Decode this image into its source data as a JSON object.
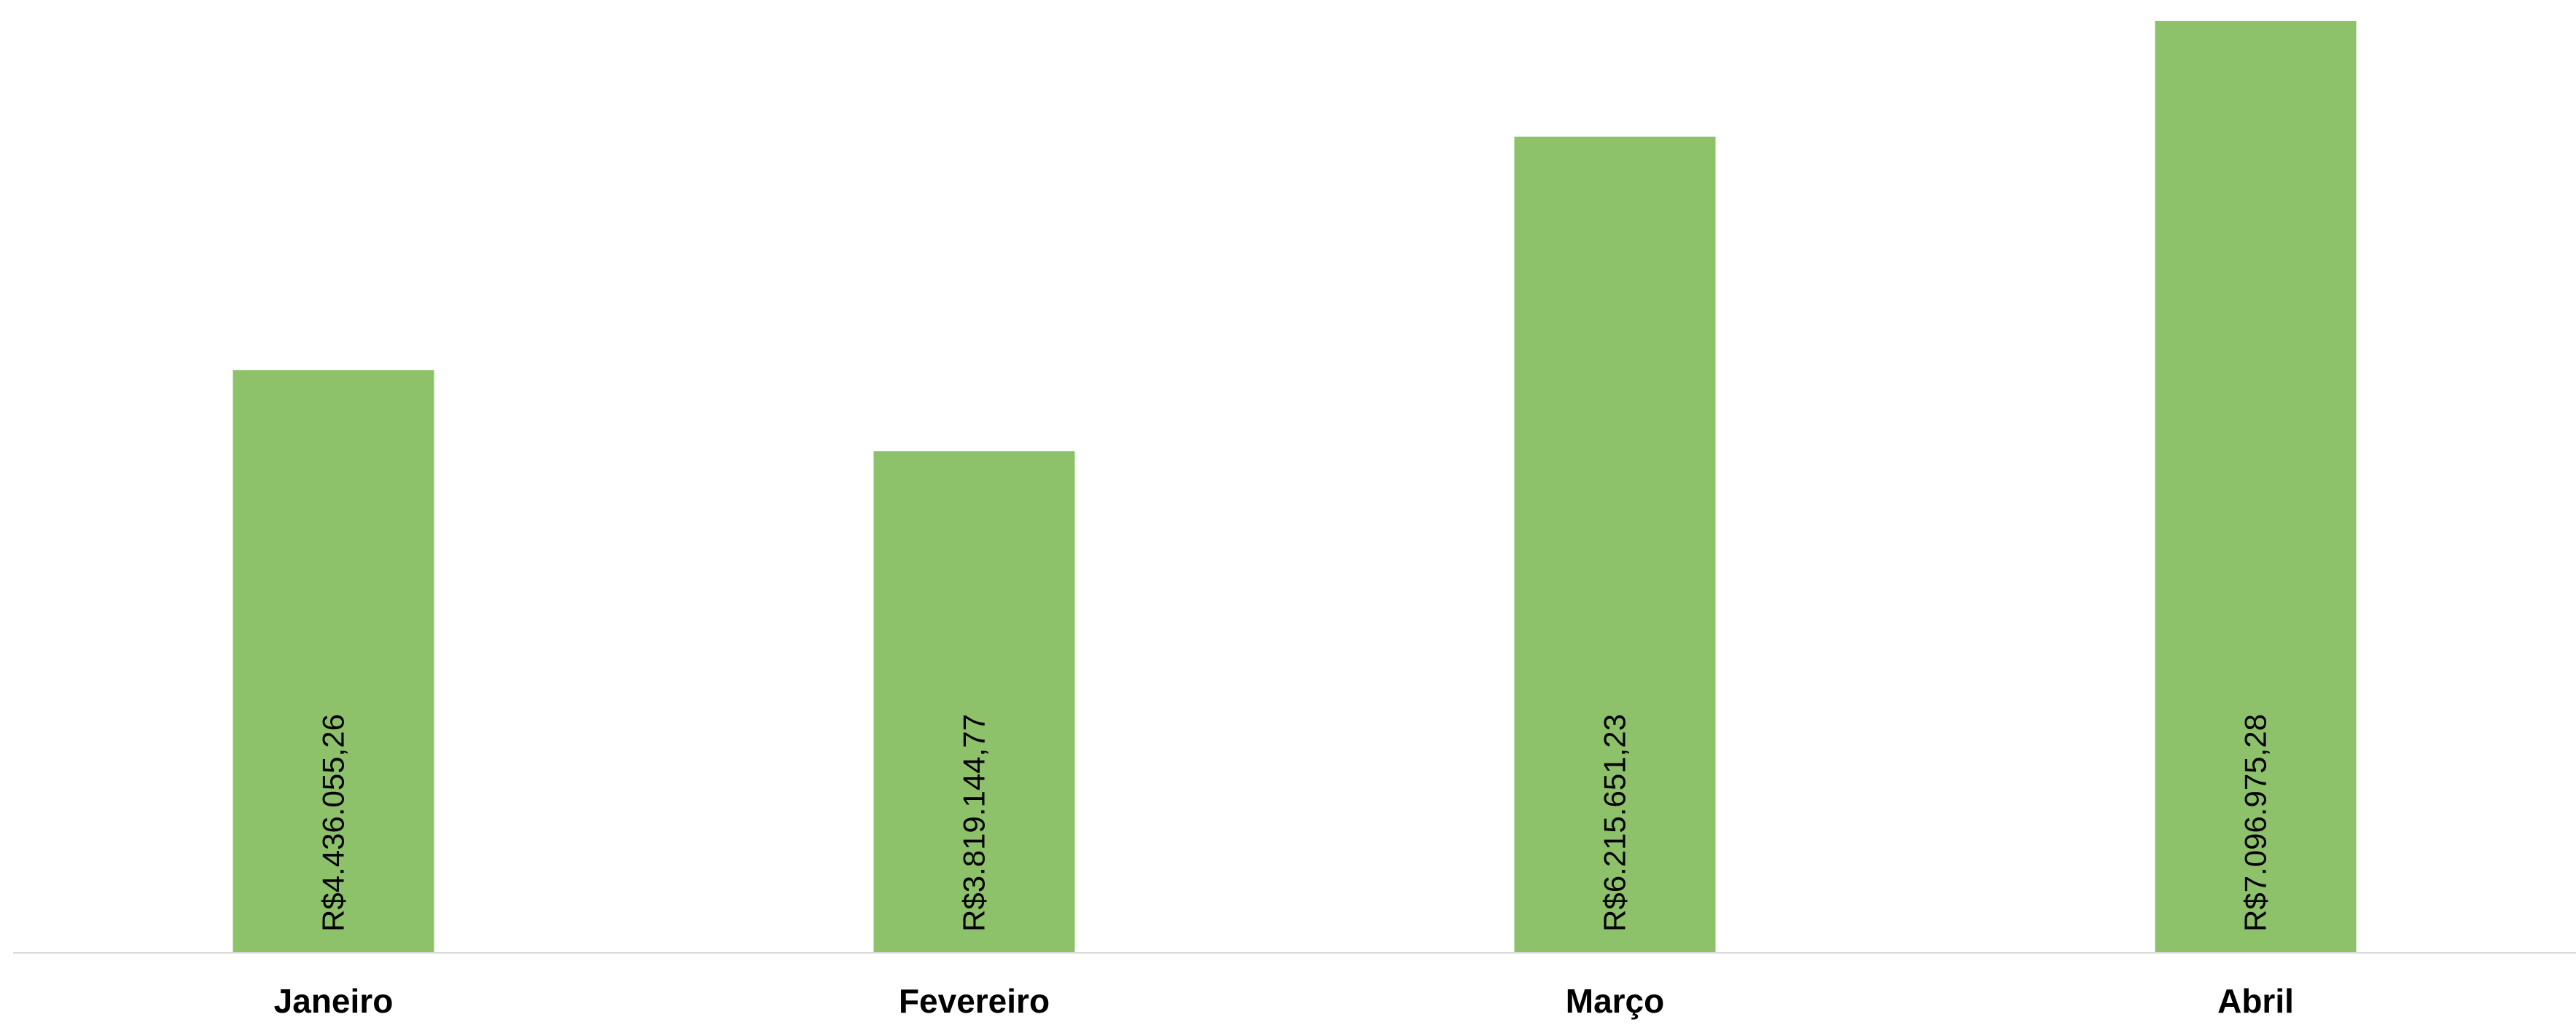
{
  "chart_data": {
    "type": "bar",
    "categories": [
      "Janeiro",
      "Fevereiro",
      "Março",
      "Abril"
    ],
    "values": [
      4436055.26,
      3819144.77,
      6215651.23,
      7096975.28
    ],
    "data_labels": [
      "R$4.436.055,26",
      "R$3.819.144,77",
      "R$6.215.651,23",
      "R$7.096.975,28"
    ],
    "title": "",
    "xlabel": "",
    "ylabel": "",
    "ylim": [
      0,
      7180000
    ],
    "grid": false,
    "legend": "none",
    "colors": {
      "bar": "#8DC16A",
      "axis": "#D9D9D9",
      "label": "#000000"
    }
  }
}
